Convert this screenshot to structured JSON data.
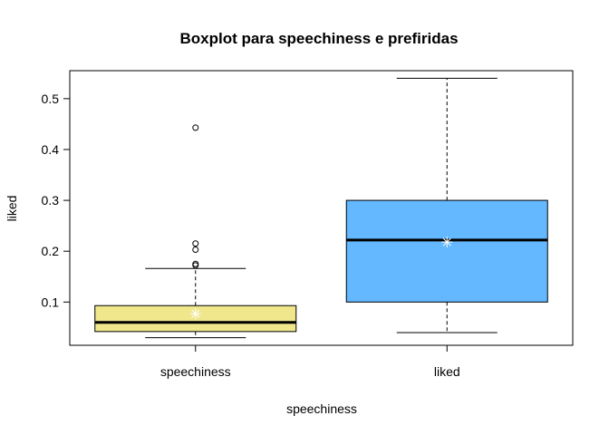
{
  "chart_data": {
    "type": "boxplot",
    "title": "Boxplot para  speechiness e prefiridas",
    "xlabel": "speechiness",
    "ylabel": "liked",
    "ylim": [
      0.015,
      0.555
    ],
    "yticks": [
      0.1,
      0.2,
      0.3,
      0.4,
      0.5
    ],
    "ytick_labels": [
      "0.1",
      "0.2",
      "0.3",
      "0.4",
      "0.5"
    ],
    "grid": false,
    "categories": [
      "speechiness",
      "liked"
    ],
    "boxes": [
      {
        "whisker_low": 0.03,
        "q1": 0.042,
        "median": 0.06,
        "q3": 0.093,
        "whisker_high": 0.166,
        "mean": 0.077,
        "outliers": [
          0.172,
          0.175,
          0.203,
          0.215,
          0.443
        ],
        "fill": "#F0E68C"
      },
      {
        "whisker_low": 0.04,
        "q1": 0.1,
        "median": 0.222,
        "q3": 0.3,
        "whisker_high": 0.54,
        "mean": 0.218,
        "outliers": [],
        "fill": "#63B8FF"
      }
    ],
    "colors": {
      "mean_marker": "#ffffff",
      "stroke": "#000000"
    }
  }
}
